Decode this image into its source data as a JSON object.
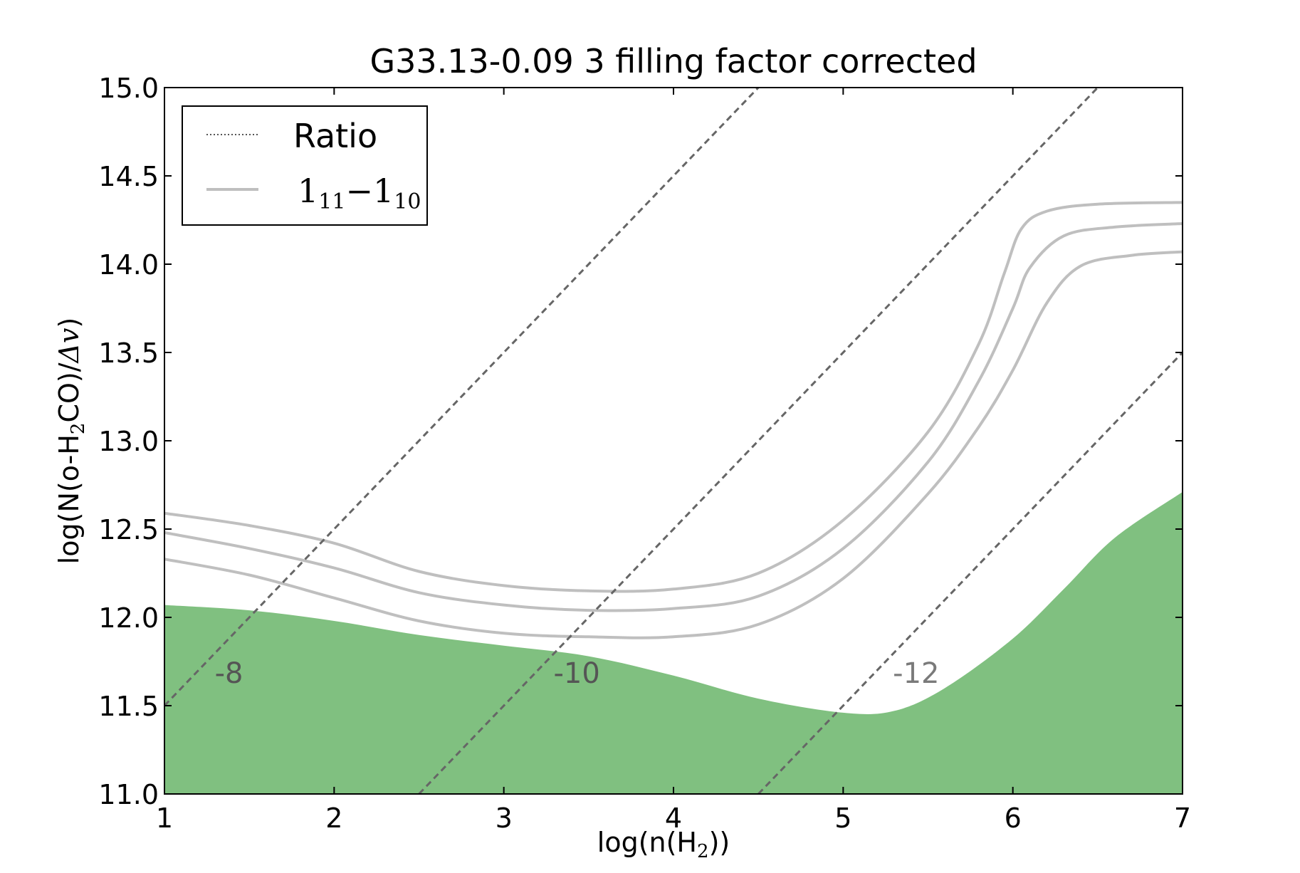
{
  "chart_data": {
    "type": "line",
    "title": "G33.13-0.09 3 filling factor corrected",
    "xlabel": {
      "pre": "log(n(H",
      "sub": "2",
      "post": "))"
    },
    "ylabel": {
      "pre": "log(N(o-H",
      "sub": "2",
      "post": "CO)/",
      "math": "Δv",
      "end": ")"
    },
    "xlim": [
      1,
      7
    ],
    "ylim": [
      11.0,
      15.0
    ],
    "xticks": [
      1,
      2,
      3,
      4,
      5,
      6,
      7
    ],
    "yticks": [
      11.0,
      11.5,
      12.0,
      12.5,
      13.0,
      13.5,
      14.0,
      14.5,
      15.0
    ],
    "xtick_labels": [
      "1",
      "2",
      "3",
      "4",
      "5",
      "6",
      "7"
    ],
    "ytick_labels": [
      "11.0",
      "11.5",
      "12.0",
      "12.5",
      "13.0",
      "13.5",
      "14.0",
      "14.5",
      "15.0"
    ],
    "grid": false,
    "legend": {
      "placement": "top-left",
      "entries": [
        {
          "label": "Ratio",
          "style": "dotted",
          "color": "#555555"
        },
        {
          "label_main": "1",
          "label_sub": "11",
          "label_dash": "−",
          "label_main2": "1",
          "label_sub2": "10",
          "style": "solid",
          "color": "#bfbfbf"
        }
      ]
    },
    "series": [
      {
        "style": "solid",
        "color": "#bfbfbf",
        "x": [
          1.0,
          1.5,
          2.0,
          2.5,
          3.0,
          3.5,
          4.0,
          4.5,
          5.0,
          5.5,
          5.8,
          5.95,
          6.05,
          6.2,
          6.5,
          7.0
        ],
        "y": [
          12.59,
          12.52,
          12.42,
          12.26,
          12.18,
          12.15,
          12.16,
          12.25,
          12.55,
          13.05,
          13.55,
          13.95,
          14.2,
          14.3,
          14.34,
          14.35
        ]
      },
      {
        "style": "solid",
        "color": "#bfbfbf",
        "x": [
          1.0,
          1.5,
          2.0,
          2.5,
          3.0,
          3.5,
          4.0,
          4.5,
          5.0,
          5.5,
          5.8,
          6.0,
          6.1,
          6.3,
          6.6,
          7.0
        ],
        "y": [
          12.48,
          12.39,
          12.28,
          12.14,
          12.07,
          12.04,
          12.05,
          12.12,
          12.39,
          12.88,
          13.34,
          13.75,
          13.98,
          14.16,
          14.21,
          14.23
        ]
      },
      {
        "style": "solid",
        "color": "#bfbfbf",
        "x": [
          1.0,
          1.5,
          2.0,
          2.5,
          3.0,
          3.5,
          4.0,
          4.5,
          5.0,
          5.5,
          5.8,
          6.0,
          6.2,
          6.4,
          6.7,
          7.0
        ],
        "y": [
          12.33,
          12.24,
          12.11,
          11.98,
          11.91,
          11.89,
          11.89,
          11.96,
          12.22,
          12.7,
          13.08,
          13.4,
          13.78,
          13.99,
          14.05,
          14.07
        ]
      }
    ],
    "slope_lines": [
      {
        "label": "-8",
        "x": [
          1.0,
          4.5
        ],
        "y": [
          11.5,
          15.0
        ],
        "label_x": 1.38,
        "label_y": 11.63,
        "color": "#666666",
        "label_color": "#555555"
      },
      {
        "label": "-10",
        "x": [
          2.5,
          6.5
        ],
        "y": [
          11.0,
          15.0
        ],
        "label_x": 3.43,
        "label_y": 11.63,
        "color": "#666666",
        "label_color": "#555555"
      },
      {
        "label": "-12",
        "x": [
          4.5,
          7.0
        ],
        "y": [
          11.0,
          13.5
        ],
        "label_x": 5.43,
        "label_y": 11.63,
        "color": "#666666",
        "label_color": "#7a7a7a"
      }
    ],
    "filled_region": {
      "color": "#80c080",
      "x": [
        1.0,
        1.5,
        2.0,
        2.5,
        3.0,
        3.5,
        4.0,
        4.5,
        5.0,
        5.3,
        5.6,
        6.0,
        6.3,
        6.6,
        7.0
      ],
      "y_upper": [
        12.07,
        12.04,
        11.98,
        11.9,
        11.84,
        11.78,
        11.67,
        11.54,
        11.46,
        11.47,
        11.6,
        11.88,
        12.16,
        12.45,
        12.71
      ],
      "y_lower": 11.0
    }
  }
}
